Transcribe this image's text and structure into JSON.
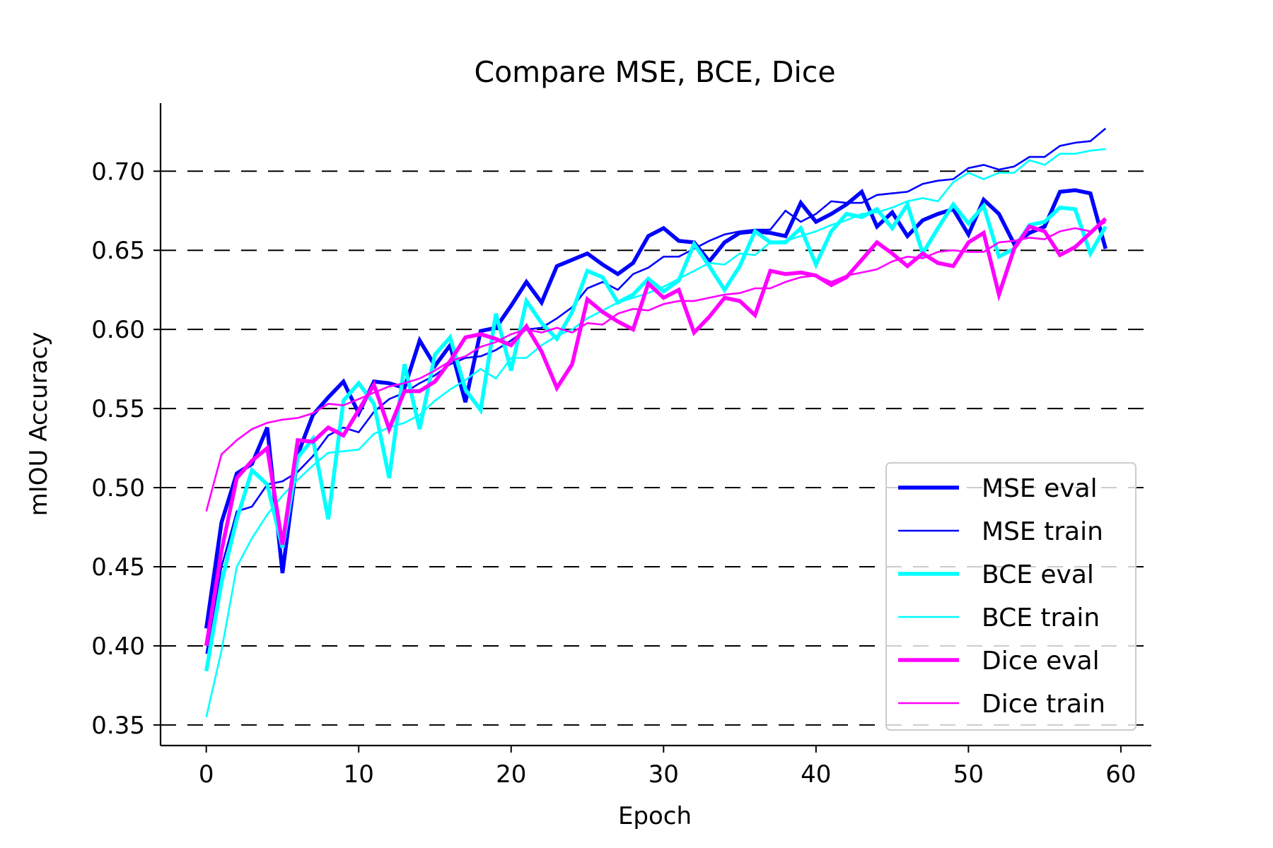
{
  "chart_data": {
    "type": "line",
    "title": "Compare MSE, BCE, Dice",
    "xlabel": "Epoch",
    "ylabel": "mIOU Accuracy",
    "xlim": [
      -3,
      62
    ],
    "ylim": [
      0.337,
      0.743
    ],
    "xticks": [
      0,
      10,
      20,
      30,
      40,
      50,
      60
    ],
    "xtick_labels": [
      "0",
      "10",
      "20",
      "30",
      "40",
      "50",
      "60"
    ],
    "yticks": [
      0.35,
      0.4,
      0.45,
      0.5,
      0.55,
      0.6,
      0.65,
      0.7
    ],
    "ytick_labels": [
      "0.35",
      "0.40",
      "0.45",
      "0.50",
      "0.55",
      "0.60",
      "0.65",
      "0.70"
    ],
    "grid": "horizontal dashed",
    "legend_position": "lower-right",
    "x": [
      0,
      1,
      2,
      3,
      4,
      5,
      6,
      7,
      8,
      9,
      10,
      11,
      12,
      13,
      14,
      15,
      16,
      17,
      18,
      19,
      20,
      21,
      22,
      23,
      24,
      25,
      26,
      27,
      28,
      29,
      30,
      31,
      32,
      33,
      34,
      35,
      36,
      37,
      38,
      39,
      40,
      41,
      42,
      43,
      44,
      45,
      46,
      47,
      48,
      49,
      50,
      51,
      52,
      53,
      54,
      55,
      56,
      57,
      58,
      59
    ],
    "series": [
      {
        "name": "MSE eval",
        "color": "#0000ff",
        "width": "thick",
        "values": [
          0.411,
          0.478,
          0.509,
          0.515,
          0.538,
          0.446,
          0.521,
          0.546,
          0.557,
          0.567,
          0.547,
          0.567,
          0.566,
          0.563,
          0.593,
          0.577,
          0.59,
          0.554,
          0.599,
          0.601,
          0.615,
          0.63,
          0.617,
          0.64,
          0.644,
          0.648,
          0.641,
          0.635,
          0.642,
          0.659,
          0.664,
          0.656,
          0.655,
          0.643,
          0.655,
          0.661,
          0.662,
          0.661,
          0.659,
          0.68,
          0.668,
          0.673,
          0.679,
          0.687,
          0.665,
          0.674,
          0.659,
          0.669,
          0.673,
          0.676,
          0.66,
          0.682,
          0.673,
          0.654,
          0.661,
          0.665,
          0.687,
          0.688,
          0.686,
          0.651
        ]
      },
      {
        "name": "MSE train",
        "color": "#0000ff",
        "width": "thin",
        "values": [
          0.395,
          0.45,
          0.485,
          0.488,
          0.502,
          0.504,
          0.51,
          0.52,
          0.533,
          0.538,
          0.535,
          0.548,
          0.556,
          0.56,
          0.566,
          0.571,
          0.578,
          0.582,
          0.583,
          0.587,
          0.593,
          0.6,
          0.601,
          0.607,
          0.614,
          0.626,
          0.63,
          0.625,
          0.635,
          0.639,
          0.646,
          0.646,
          0.651,
          0.656,
          0.66,
          0.662,
          0.663,
          0.663,
          0.675,
          0.668,
          0.673,
          0.681,
          0.68,
          0.68,
          0.685,
          0.686,
          0.687,
          0.692,
          0.694,
          0.695,
          0.702,
          0.704,
          0.701,
          0.703,
          0.709,
          0.709,
          0.716,
          0.718,
          0.719,
          0.727
        ]
      },
      {
        "name": "BCE eval",
        "color": "#00ffff",
        "width": "thick",
        "values": [
          0.384,
          0.44,
          0.48,
          0.511,
          0.502,
          0.462,
          0.519,
          0.531,
          0.48,
          0.555,
          0.566,
          0.553,
          0.506,
          0.578,
          0.537,
          0.584,
          0.595,
          0.562,
          0.549,
          0.61,
          0.574,
          0.618,
          0.604,
          0.594,
          0.611,
          0.637,
          0.633,
          0.617,
          0.622,
          0.632,
          0.624,
          0.631,
          0.654,
          0.64,
          0.625,
          0.64,
          0.662,
          0.655,
          0.655,
          0.664,
          0.641,
          0.662,
          0.673,
          0.671,
          0.676,
          0.664,
          0.679,
          0.648,
          0.664,
          0.679,
          0.667,
          0.678,
          0.646,
          0.651,
          0.666,
          0.668,
          0.677,
          0.676,
          0.648,
          0.665
        ]
      },
      {
        "name": "BCE train",
        "color": "#00ffff",
        "width": "thin",
        "values": [
          0.355,
          0.397,
          0.45,
          0.468,
          0.483,
          0.495,
          0.505,
          0.514,
          0.522,
          0.523,
          0.524,
          0.534,
          0.538,
          0.541,
          0.546,
          0.555,
          0.562,
          0.568,
          0.575,
          0.569,
          0.582,
          0.582,
          0.59,
          0.596,
          0.6,
          0.607,
          0.612,
          0.617,
          0.62,
          0.623,
          0.627,
          0.632,
          0.637,
          0.642,
          0.641,
          0.648,
          0.647,
          0.655,
          0.656,
          0.659,
          0.662,
          0.666,
          0.669,
          0.673,
          0.674,
          0.677,
          0.681,
          0.683,
          0.681,
          0.693,
          0.699,
          0.695,
          0.699,
          0.699,
          0.707,
          0.704,
          0.711,
          0.711,
          0.713,
          0.714
        ]
      },
      {
        "name": "Dice eval",
        "color": "#ff00ff",
        "width": "thick",
        "values": [
          0.4,
          0.46,
          0.506,
          0.517,
          0.525,
          0.464,
          0.53,
          0.529,
          0.538,
          0.533,
          0.549,
          0.565,
          0.537,
          0.561,
          0.561,
          0.567,
          0.58,
          0.595,
          0.597,
          0.594,
          0.59,
          0.602,
          0.586,
          0.563,
          0.578,
          0.619,
          0.611,
          0.605,
          0.6,
          0.629,
          0.62,
          0.625,
          0.598,
          0.608,
          0.62,
          0.618,
          0.609,
          0.637,
          0.635,
          0.636,
          0.634,
          0.628,
          0.633,
          0.644,
          0.655,
          0.648,
          0.64,
          0.648,
          0.642,
          0.64,
          0.655,
          0.661,
          0.622,
          0.651,
          0.665,
          0.662,
          0.647,
          0.652,
          0.661,
          0.67
        ]
      },
      {
        "name": "Dice train",
        "color": "#ff00ff",
        "width": "thin",
        "values": [
          0.485,
          0.521,
          0.53,
          0.537,
          0.541,
          0.543,
          0.544,
          0.547,
          0.553,
          0.552,
          0.556,
          0.56,
          0.564,
          0.566,
          0.569,
          0.574,
          0.58,
          0.583,
          0.589,
          0.592,
          0.597,
          0.6,
          0.598,
          0.601,
          0.598,
          0.604,
          0.603,
          0.61,
          0.613,
          0.612,
          0.616,
          0.618,
          0.618,
          0.62,
          0.622,
          0.623,
          0.626,
          0.626,
          0.63,
          0.633,
          0.634,
          0.63,
          0.634,
          0.636,
          0.638,
          0.643,
          0.646,
          0.645,
          0.649,
          0.65,
          0.649,
          0.649,
          0.655,
          0.656,
          0.658,
          0.657,
          0.662,
          0.664,
          0.662,
          0.668
        ]
      }
    ]
  }
}
